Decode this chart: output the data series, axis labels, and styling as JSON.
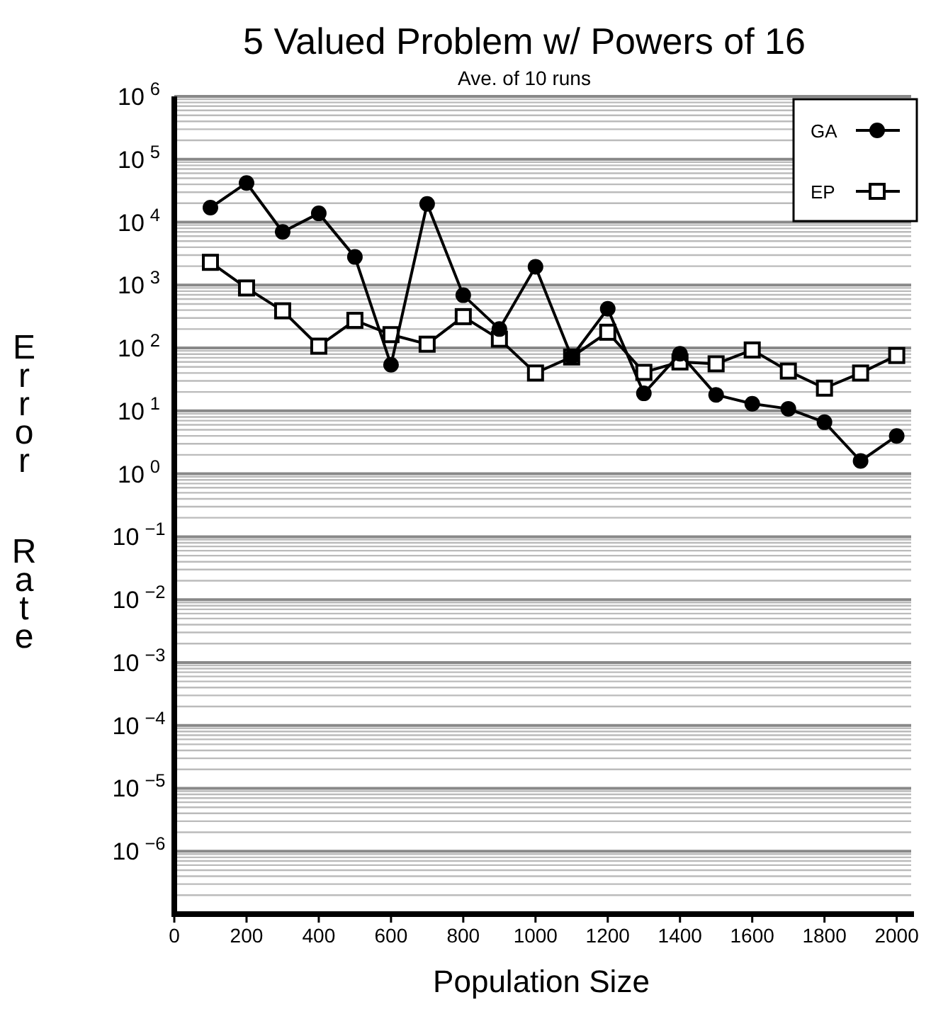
{
  "chart_data": {
    "type": "line",
    "title": "5 Valued Problem w/ Powers of 16",
    "subtitle": "Ave. of 10 runs",
    "xlabel": "Population Size",
    "ylabel": "Error Rate",
    "x": [
      100,
      200,
      300,
      400,
      500,
      600,
      700,
      800,
      900,
      1000,
      1100,
      1200,
      1300,
      1400,
      1500,
      1600,
      1700,
      1800,
      1900,
      2000
    ],
    "series": [
      {
        "name": "GA",
        "color": "#000000",
        "marker": "circle",
        "values": [
          17000,
          42000,
          7000,
          13800,
          2800,
          54,
          19500,
          690,
          200,
          1950,
          72,
          420,
          19,
          81,
          18,
          13,
          10.8,
          6.6,
          1.6,
          4.0
        ]
      },
      {
        "name": "EP",
        "color": "#000000",
        "marker": "square",
        "values": [
          2300,
          900,
          390,
          107,
          275,
          163,
          115,
          315,
          138,
          40,
          72,
          178,
          41,
          60,
          56,
          93,
          43,
          23,
          40,
          76
        ]
      }
    ],
    "log": "y",
    "grid": "y",
    "legend": "top right",
    "line_style": "solid",
    "xlim": [
      0,
      2040
    ],
    "xticks": [
      0,
      200,
      400,
      600,
      800,
      1000,
      1200,
      1400,
      1600,
      1800,
      2000
    ],
    "ylim": [
      1e-07,
      1000000
    ],
    "yticks": [
      {
        "value": 1000000,
        "label": "10$^{6}$"
      },
      {
        "value": 100000,
        "label": "10$^{5}$"
      },
      {
        "value": 10000,
        "label": "10$^{4}$"
      },
      {
        "value": 1000,
        "label": "10$^{3}$"
      },
      {
        "value": 100,
        "label": "10$^{2}$"
      },
      {
        "value": 10,
        "label": "10$^{1}$"
      },
      {
        "value": 1,
        "label": "10$^{0}$"
      },
      {
        "value": 0.1,
        "label": "10$^{−1}$"
      },
      {
        "value": 0.01,
        "label": "10$^{−2}$"
      },
      {
        "value": 0.001,
        "label": "10$^{−3}$"
      },
      {
        "value": 0.0001,
        "label": "10$^{−4}$"
      },
      {
        "value": 1e-05,
        "label": "10$^{−5}$"
      },
      {
        "value": 1e-06,
        "label": "10$^{−6}$"
      }
    ]
  }
}
